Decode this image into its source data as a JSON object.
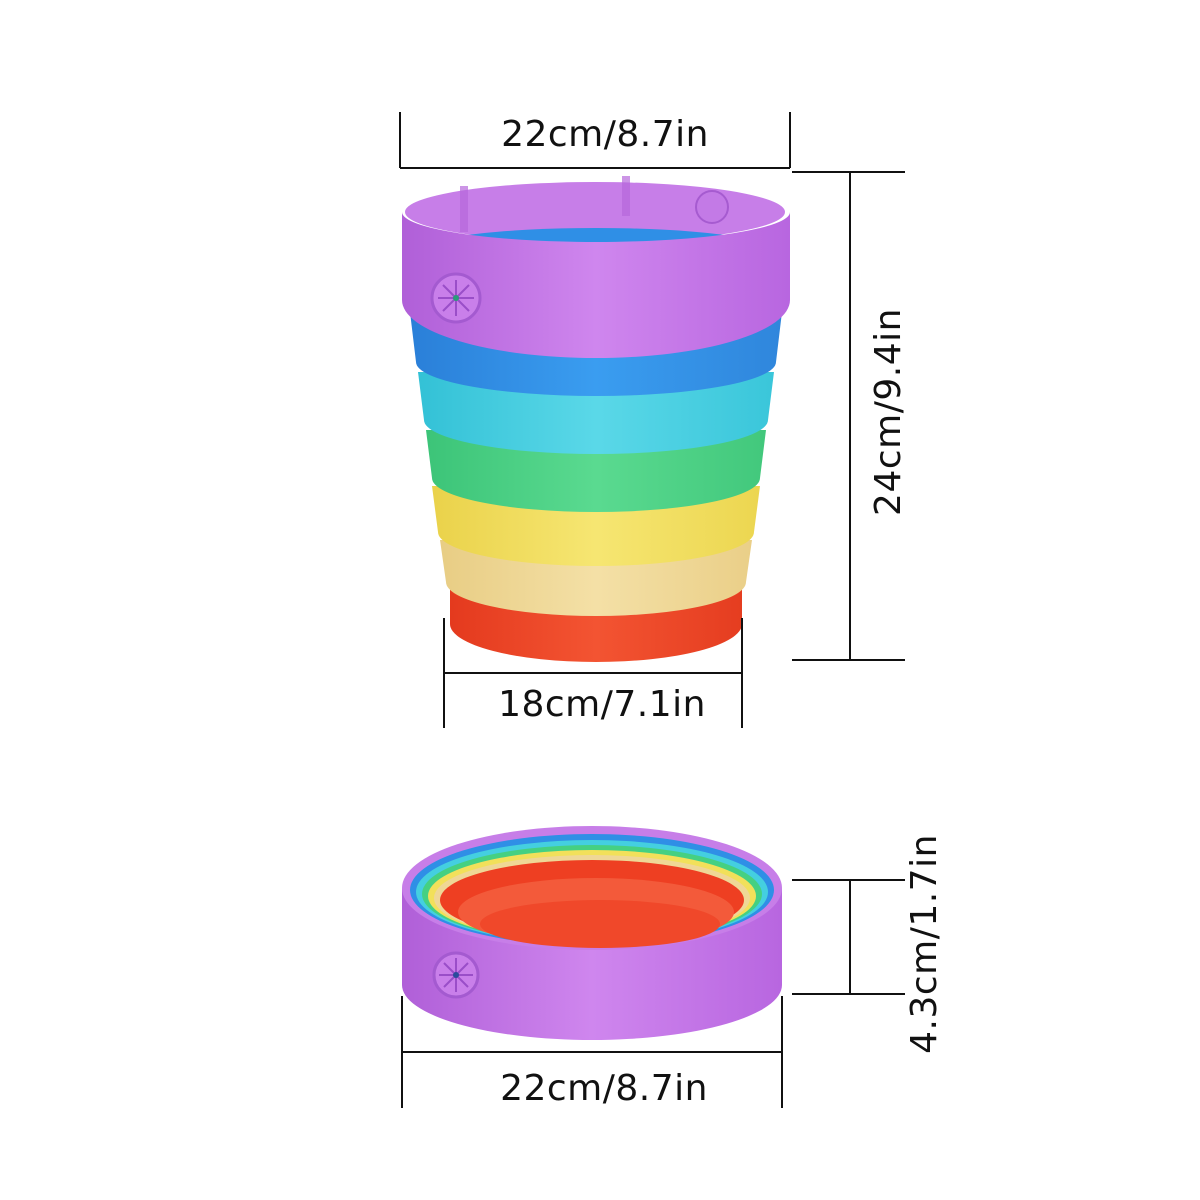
{
  "product": {
    "ring_colors": {
      "purple": "#c46ee8",
      "blue": "#2f8fe6",
      "cyan": "#3fcfe0",
      "green": "#45d082",
      "yellow": "#f2e05a",
      "cream": "#efd796",
      "red": "#ee3f22"
    }
  },
  "dimensions": {
    "expanded_top_width": "22cm/8.7in",
    "expanded_bottom_width": "18cm/7.1in",
    "expanded_height": "24cm/9.4in",
    "collapsed_height": "4.3cm/1.7in",
    "collapsed_width": "22cm/8.7in"
  }
}
